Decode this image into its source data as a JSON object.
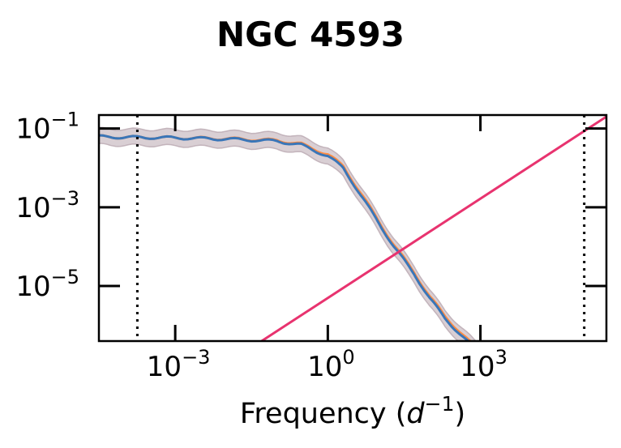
{
  "chart_data": {
    "type": "line",
    "title": "NGC 4593",
    "xlabel": {
      "prefix": "Frequency (",
      "var": "d",
      "exp": "−1",
      "suffix": ")"
    },
    "ylabel": "",
    "xscale": "log",
    "yscale": "log",
    "xlim": [
      3.16e-05,
      300000
    ],
    "ylim": [
      4e-07,
      0.22
    ],
    "x_ticks": [
      {
        "value": 0.001,
        "base": "10",
        "exp": "−3"
      },
      {
        "value": 1,
        "base": "10",
        "exp": "0"
      },
      {
        "value": 1000,
        "base": "10",
        "exp": "3"
      }
    ],
    "y_ticks": [
      {
        "value": 0.1,
        "base": "10",
        "exp": "−1"
      },
      {
        "value": 0.001,
        "base": "10",
        "exp": "−3"
      },
      {
        "value": 1e-05,
        "base": "10",
        "exp": "−5"
      }
    ],
    "vlines": [
      0.00018,
      110000
    ],
    "series": [
      {
        "color": "#ff8c42",
        "x": [
          3.16e-05,
          0.0001,
          0.001,
          0.01,
          0.1,
          0.3,
          1,
          2,
          3,
          5,
          10,
          20,
          50,
          100,
          200,
          500,
          1000
        ],
        "y": [
          0.062,
          0.06,
          0.058,
          0.055,
          0.05,
          0.04,
          0.022,
          0.011,
          0.005,
          0.0018,
          0.00044,
          0.00011,
          2.2e-05,
          5.5e-06,
          1.7e-06,
          5e-07,
          2e-07
        ]
      },
      {
        "color": "#3a76b8",
        "band_color": "#b9a7b0",
        "band_factor": 1.6,
        "x": [
          3.16e-05,
          0.0001,
          0.001,
          0.01,
          0.1,
          0.3,
          1,
          2,
          3,
          5,
          10,
          20,
          50,
          100,
          200,
          500,
          1000
        ],
        "y": [
          0.062,
          0.06,
          0.058,
          0.054,
          0.048,
          0.038,
          0.02,
          0.01,
          0.0045,
          0.0016,
          0.0004,
          0.0001,
          2e-05,
          5e-06,
          1.5e-06,
          4.5e-07,
          1.8e-07
        ]
      },
      {
        "color": "#e8336f",
        "x": [
          0.05,
          300000
        ],
        "y": [
          4e-07,
          0.2
        ]
      }
    ]
  }
}
